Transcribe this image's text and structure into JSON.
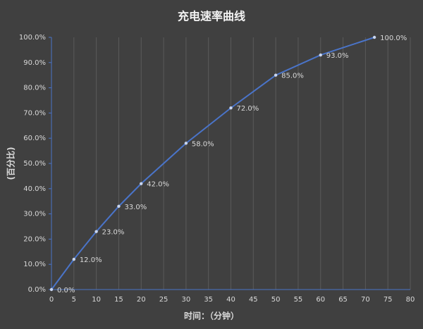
{
  "chart_data": {
    "type": "line",
    "title": "充电速率曲线",
    "xlabel": "时间：（分钟）",
    "ylabel": "(百分比)",
    "x": [
      0,
      5,
      10,
      15,
      20,
      30,
      40,
      50,
      60,
      72
    ],
    "series": [
      {
        "color": "#4a74c9",
        "values": [
          0,
          12,
          23,
          33,
          42,
          58,
          72,
          85,
          93,
          100
        ],
        "value_labels": [
          "0.0%",
          "12.0%",
          "23.0%",
          "33.0%",
          "42.0%",
          "58.0%",
          "72.0%",
          "85.0%",
          "93.0%",
          "100.0%"
        ]
      }
    ],
    "xlim": [
      0,
      80
    ],
    "xticks": [
      0,
      5,
      10,
      15,
      20,
      25,
      30,
      35,
      40,
      45,
      50,
      55,
      60,
      65,
      70,
      75,
      80
    ],
    "ylim": [
      0,
      100
    ],
    "yticks": [
      {
        "value": 0,
        "label": "0.0%"
      },
      {
        "value": 10,
        "label": "10.0%"
      },
      {
        "value": 20,
        "label": "20.0%"
      },
      {
        "value": 30,
        "label": "30.0%"
      },
      {
        "value": 40,
        "label": "40.0%"
      },
      {
        "value": 50,
        "label": "50.0%"
      },
      {
        "value": 60,
        "label": "60.0%"
      },
      {
        "value": 70,
        "label": "70.0%"
      },
      {
        "value": 80,
        "label": "80.0%"
      },
      {
        "value": 90,
        "label": "90.0%"
      },
      {
        "value": 100,
        "label": "100.0%"
      }
    ],
    "grid": true
  }
}
